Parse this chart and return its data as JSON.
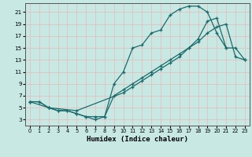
{
  "xlabel": "Humidex (Indice chaleur)",
  "background_color": "#c8e8e4",
  "grid_color": "#e8b8b8",
  "line_color": "#1a6b6b",
  "xlim": [
    -0.5,
    23.5
  ],
  "ylim": [
    2.0,
    22.5
  ],
  "xticks": [
    0,
    1,
    2,
    3,
    4,
    5,
    6,
    7,
    8,
    9,
    10,
    11,
    12,
    13,
    14,
    15,
    16,
    17,
    18,
    19,
    20,
    21,
    22,
    23
  ],
  "yticks": [
    3,
    5,
    7,
    9,
    11,
    13,
    15,
    17,
    19,
    21
  ],
  "line1_x": [
    0,
    1,
    2,
    3,
    4,
    5,
    6,
    7,
    8,
    9,
    10,
    11,
    12,
    13,
    14,
    15,
    16,
    17,
    18,
    19,
    20,
    21
  ],
  "line1_y": [
    6,
    6,
    5,
    4.5,
    4.5,
    4,
    3.5,
    3.5,
    3.5,
    9,
    11,
    15,
    15.5,
    17.5,
    18,
    20.5,
    21.5,
    22,
    22,
    21,
    17.5,
    15
  ],
  "line2_x": [
    0,
    1,
    2,
    3,
    4,
    5,
    6,
    7,
    8,
    9,
    10,
    11,
    12,
    13,
    14,
    15,
    16,
    17,
    18,
    19,
    20,
    21,
    22,
    23
  ],
  "line2_y": [
    6,
    6,
    5,
    4.5,
    4.5,
    4,
    3.5,
    3,
    3.5,
    7,
    8,
    9,
    10,
    11,
    12,
    13,
    14,
    15,
    16.5,
    19.5,
    20,
    15,
    15,
    13
  ],
  "line3_x": [
    0,
    2,
    5,
    10,
    11,
    12,
    13,
    14,
    15,
    16,
    17,
    18,
    19,
    20,
    21,
    22,
    23
  ],
  "line3_y": [
    6,
    5,
    4.5,
    7.5,
    8.5,
    9.5,
    10.5,
    11.5,
    12.5,
    13.5,
    15,
    16,
    17.5,
    18.5,
    19,
    13.5,
    13
  ]
}
